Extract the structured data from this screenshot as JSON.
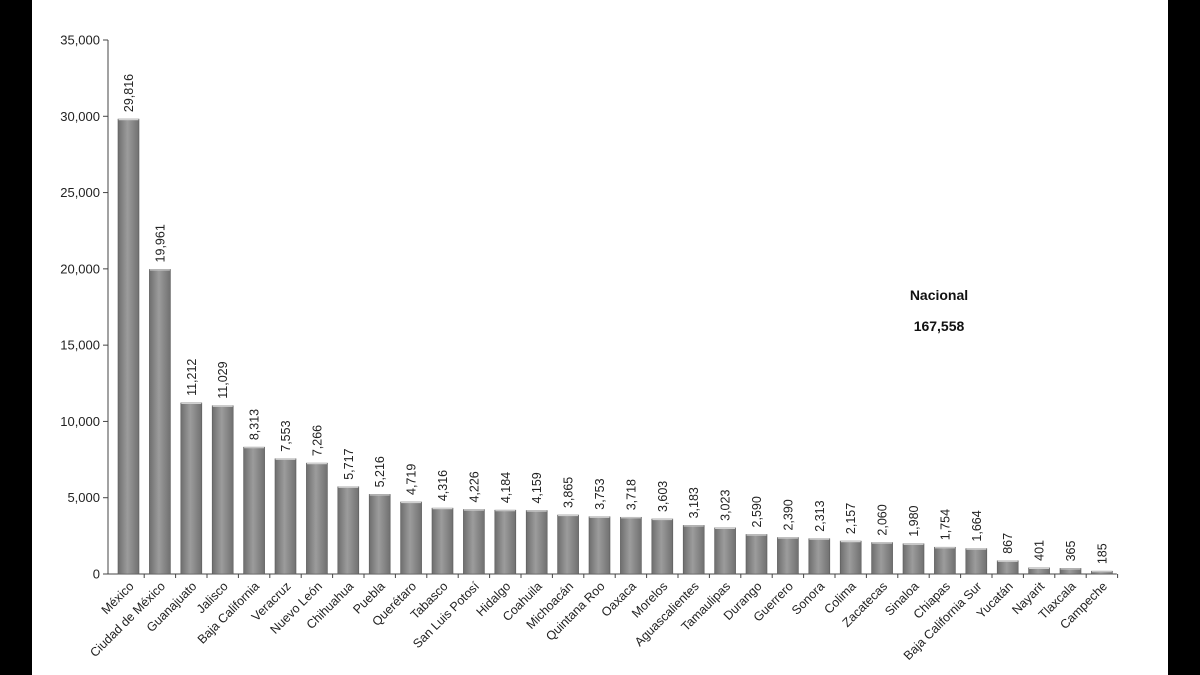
{
  "chart_data": {
    "type": "bar",
    "title": "",
    "xlabel": "",
    "ylabel": "",
    "ylim": [
      0,
      35000
    ],
    "yticks": [
      0,
      5000,
      10000,
      15000,
      20000,
      25000,
      30000,
      35000
    ],
    "ytick_labels": [
      "0",
      "5,000",
      "10,000",
      "15,000",
      "20,000",
      "25,000",
      "30,000",
      "35,000"
    ],
    "grid": false,
    "legend": "none",
    "bar_color": "#8c8c8c",
    "categories": [
      "México",
      "Ciudad de México",
      "Guanajuato",
      "Jalisco",
      "Baja California",
      "Veracruz",
      "Nuevo León",
      "Chihuahua",
      "Puebla",
      "Querétaro",
      "Tabasco",
      "San Luis Potosí",
      "Hidalgo",
      "Coahuila",
      "Michoacán",
      "Quintana Roo",
      "Oaxaca",
      "Morelos",
      "Aguascalientes",
      "Tamaulipas",
      "Durango",
      "Guerrero",
      "Sonora",
      "Colima",
      "Zacatecas",
      "Sinaloa",
      "Chiapas",
      "Baja California Sur",
      "Yucatán",
      "Nayarit",
      "Tlaxcala",
      "Campeche"
    ],
    "values": [
      29816,
      19961,
      11212,
      11029,
      8313,
      7553,
      7266,
      5717,
      5216,
      4719,
      4316,
      4226,
      4184,
      4159,
      3865,
      3753,
      3718,
      3603,
      3183,
      3023,
      2590,
      2390,
      2313,
      2157,
      2060,
      1980,
      1754,
      1664,
      867,
      401,
      365,
      185
    ],
    "value_labels": [
      "29,816",
      "19,961",
      "11,212",
      "11,029",
      "8,313",
      "7,553",
      "7,266",
      "5,717",
      "5,216",
      "4,719",
      "4,316",
      "4,226",
      "4,184",
      "4,159",
      "3,865",
      "3,753",
      "3,718",
      "3,603",
      "3,183",
      "3,023",
      "2,590",
      "2,390",
      "2,313",
      "2,157",
      "2,060",
      "1,980",
      "1,754",
      "1,664",
      "867",
      "401",
      "365",
      "185"
    ],
    "annotation": {
      "label": "Nacional",
      "value": "167,558"
    }
  }
}
